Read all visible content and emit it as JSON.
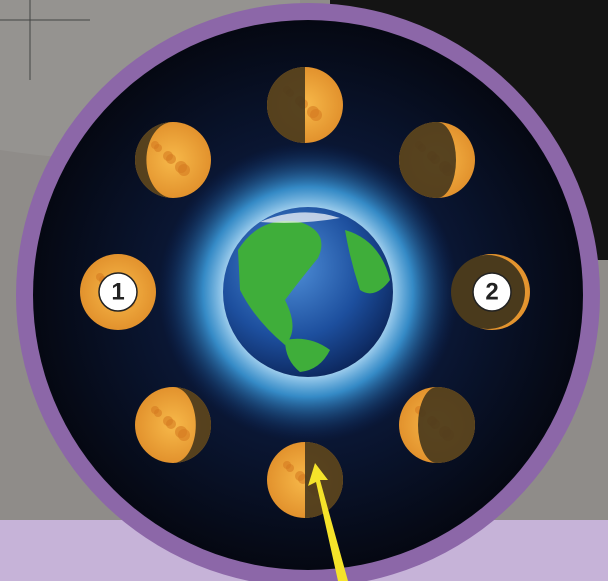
{
  "labels": [
    "1",
    "2"
  ]
}
